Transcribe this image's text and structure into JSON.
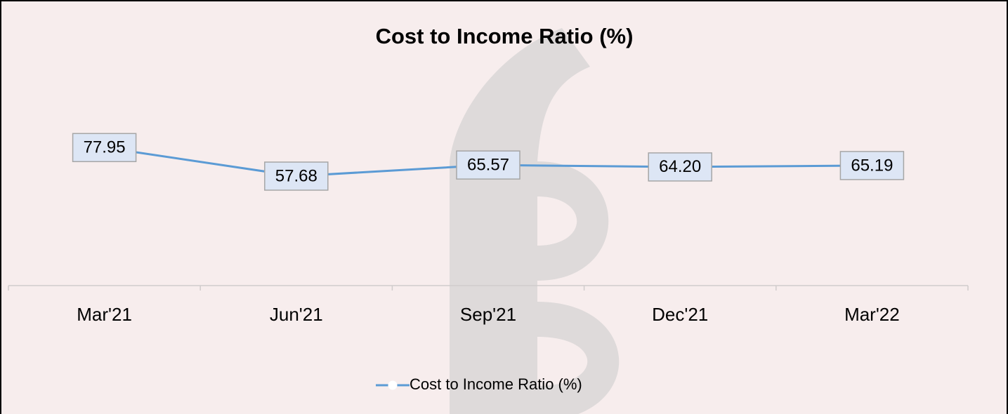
{
  "chart_data": {
    "type": "line",
    "title": "Cost to Income Ratio (%)",
    "categories": [
      "Mar'21",
      "Jun'21",
      "Sep'21",
      "Dec'21",
      "Mar'22"
    ],
    "series": [
      {
        "name": "Cost to Income Ratio (%)",
        "color": "#5b9bd5",
        "values": [
          77.95,
          57.68,
          65.57,
          64.2,
          65.19
        ],
        "value_labels": [
          "77.95",
          "57.68",
          "65.57",
          "64.20",
          "65.19"
        ]
      }
    ],
    "ylim": [
      -20,
      100
    ],
    "legend": "bottom"
  }
}
